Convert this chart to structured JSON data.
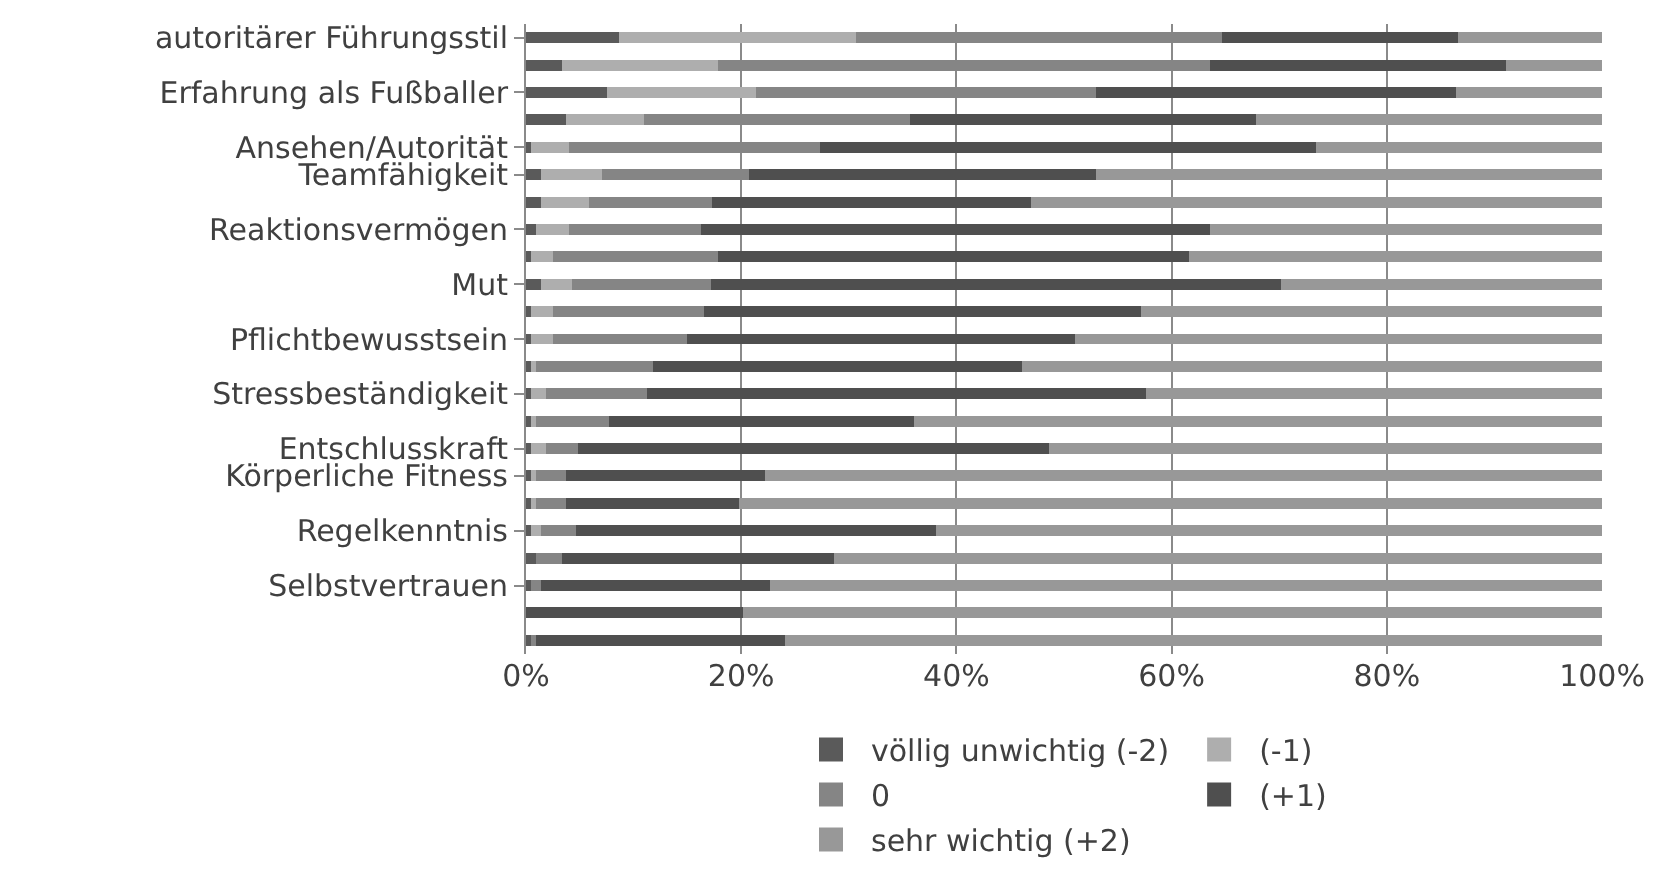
{
  "chart_data": {
    "type": "bar",
    "orientation": "horizontal",
    "stacked": true,
    "categories": [
      "autoritärer Führungsstil",
      null,
      "Erfahrung als Fußballer",
      null,
      "Ansehen/Autorität",
      "Teamfähigkeit",
      null,
      "Reaktionsvermögen",
      null,
      "Mut",
      null,
      "Pflichtbewusstsein",
      null,
      "Stressbeständigkeit",
      null,
      "Entschlusskraft",
      "Körperliche Fitness",
      null,
      "Regelkenntnis",
      null,
      "Selbstvertrauen",
      null,
      null
    ],
    "series": [
      {
        "name": "völlig unwichtig (-2)",
        "color": "#5a5a5a",
        "values": [
          8.6,
          3.3,
          7.5,
          3.7,
          0.5,
          1.4,
          1.4,
          0.9,
          0.5,
          1.4,
          0.5,
          0.5,
          0.5,
          0.5,
          0.5,
          0.5,
          0.5,
          0.5,
          0.5,
          0.9,
          0.5,
          0,
          0.5
        ]
      },
      {
        "name": "(-1)",
        "color": "#aeaeae",
        "values": [
          22.1,
          14.5,
          13.9,
          7.3,
          3.5,
          5.7,
          4.5,
          3.1,
          2.0,
          2.9,
          2.0,
          2.0,
          0.4,
          1.4,
          0.4,
          1.4,
          0.4,
          0.4,
          0.9,
          0,
          0,
          0,
          0
        ]
      },
      {
        "name": "0",
        "color": "#858585",
        "values": [
          34.0,
          45.8,
          31.6,
          24.7,
          23.3,
          13.6,
          11.4,
          12.3,
          15.3,
          12.9,
          14.0,
          12.5,
          10.9,
          9.3,
          6.8,
          2.9,
          2.8,
          2.8,
          3.2,
          2.4,
          0.9,
          0,
          0.4
        ]
      },
      {
        "name": "(+1)",
        "color": "#4f4f4f",
        "values": [
          21.9,
          27.5,
          33.4,
          32.1,
          46.1,
          32.3,
          29.6,
          47.3,
          43.8,
          53.0,
          40.7,
          36.0,
          34.3,
          46.4,
          28.4,
          43.8,
          18.5,
          16.1,
          33.5,
          25.3,
          21.3,
          20.2,
          23.2
        ]
      },
      {
        "name": "sehr wichtig (+2)",
        "color": "#989898",
        "values": [
          13.4,
          8.9,
          13.6,
          32.2,
          26.6,
          47.0,
          53.1,
          36.4,
          38.4,
          29.8,
          42.8,
          49.0,
          53.9,
          42.4,
          63.9,
          51.4,
          77.8,
          80.2,
          61.9,
          71.4,
          77.3,
          79.8,
          75.9
        ]
      }
    ],
    "xlim": [
      0,
      100
    ],
    "xticks": [
      {
        "value": 0,
        "label": "0%"
      },
      {
        "value": 20,
        "label": "20%"
      },
      {
        "value": 40,
        "label": "40%"
      },
      {
        "value": 60,
        "label": "60%"
      },
      {
        "value": 80,
        "label": "80%"
      },
      {
        "value": 100,
        "label": "100%"
      }
    ],
    "grid": "x",
    "legend": "bottom"
  }
}
